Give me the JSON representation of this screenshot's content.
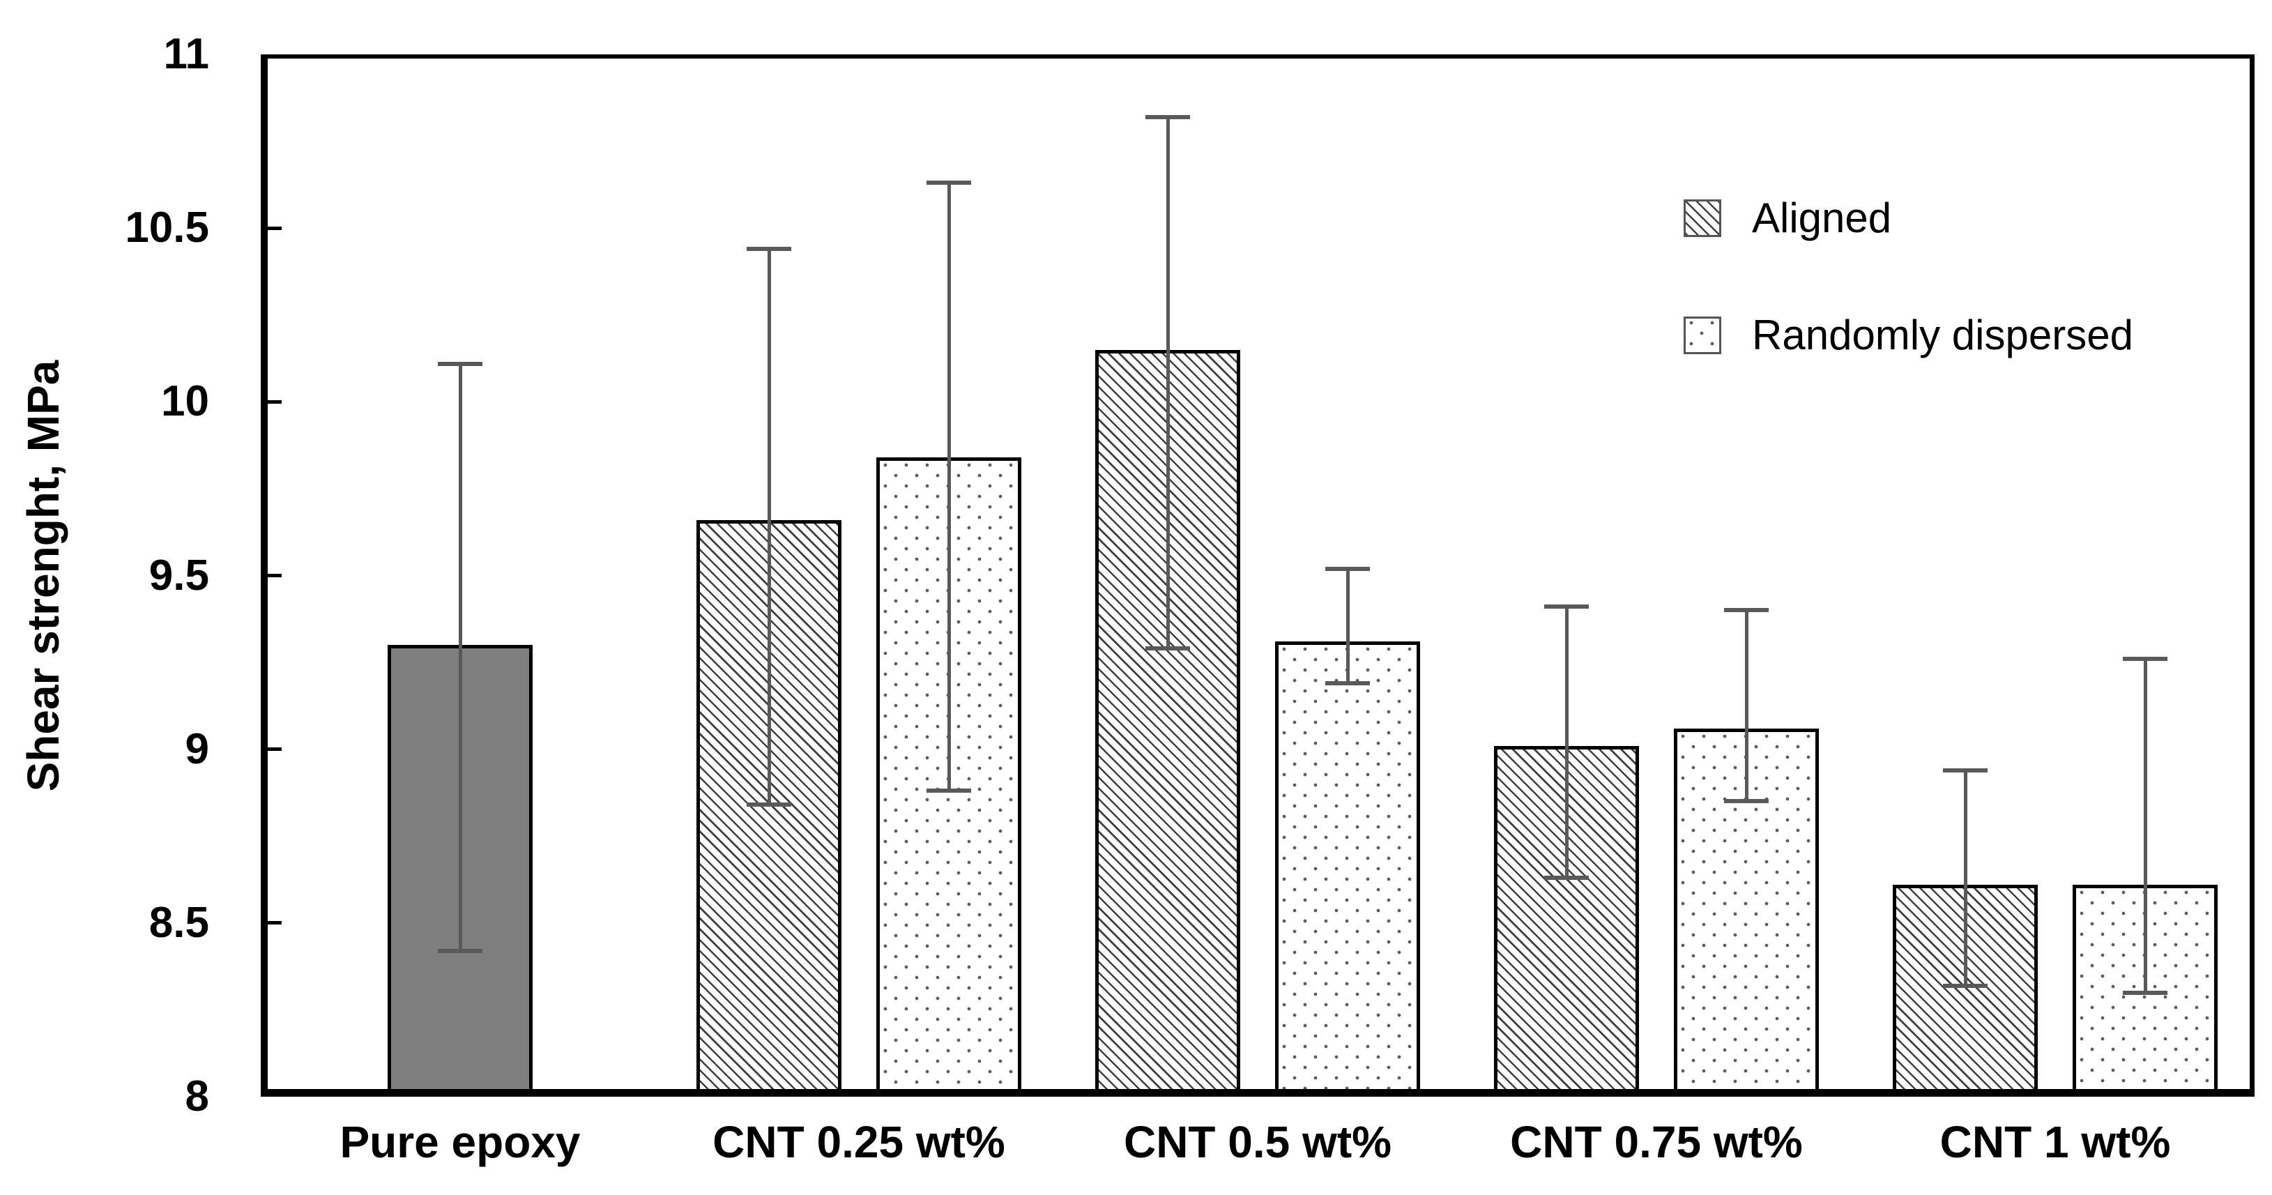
{
  "chart_data": {
    "type": "bar",
    "title": "",
    "xlabel": "",
    "ylabel": "Shear strenght, MPa",
    "ylim": [
      8,
      11
    ],
    "yticks": [
      8,
      8.5,
      9,
      9.5,
      10,
      10.5,
      11
    ],
    "grid": false,
    "error_bars": true,
    "categories": [
      "Pure epoxy",
      "CNT 0.25 wt%",
      "CNT 0.5 wt%",
      "CNT 0.75 wt%",
      "CNT 1 wt%"
    ],
    "legend": {
      "position": "top-right-inside",
      "items": [
        {
          "label": "Aligned",
          "pattern": "diagonal-hatch"
        },
        {
          "label": "Randomly dispersed",
          "pattern": "dots"
        }
      ]
    },
    "bars": [
      {
        "category": "Pure epoxy",
        "series": "Pure epoxy",
        "style": "gray",
        "value": 9.3,
        "err_plus": 0.81,
        "err_minus": 0.88
      },
      {
        "category": "CNT 0.25 wt%",
        "series": "Aligned",
        "style": "hatch",
        "value": 9.66,
        "err_plus": 0.78,
        "err_minus": 0.82
      },
      {
        "category": "CNT 0.25 wt%",
        "series": "Randomly dispersed",
        "style": "dots",
        "value": 9.84,
        "err_plus": 0.79,
        "err_minus": 0.96
      },
      {
        "category": "CNT 0.5 wt%",
        "series": "Aligned",
        "style": "hatch",
        "value": 10.15,
        "err_plus": 0.67,
        "err_minus": 0.86
      },
      {
        "category": "CNT 0.5 wt%",
        "series": "Randomly dispersed",
        "style": "dots",
        "value": 9.31,
        "err_plus": 0.21,
        "err_minus": 0.12
      },
      {
        "category": "CNT 0.75 wt%",
        "series": "Aligned",
        "style": "hatch",
        "value": 9.01,
        "err_plus": 0.4,
        "err_minus": 0.38
      },
      {
        "category": "CNT 0.75 wt%",
        "series": "Randomly dispersed",
        "style": "dots",
        "value": 9.06,
        "err_plus": 0.34,
        "err_minus": 0.21
      },
      {
        "category": "CNT 1 wt%",
        "series": "Aligned",
        "style": "hatch",
        "value": 8.61,
        "err_plus": 0.33,
        "err_minus": 0.29
      },
      {
        "category": "CNT 1 wt%",
        "series": "Randomly dispersed",
        "style": "dots",
        "value": 8.61,
        "err_plus": 0.65,
        "err_minus": 0.31
      }
    ],
    "colors": {
      "pure_epoxy_fill": "#7F7F7F",
      "bar_border": "#000000",
      "hatch_line": "#3F3F3F",
      "dot": "#5A5A5A",
      "error_bar": "#595959",
      "axis": "#000000",
      "background": "#FFFFFF"
    }
  }
}
